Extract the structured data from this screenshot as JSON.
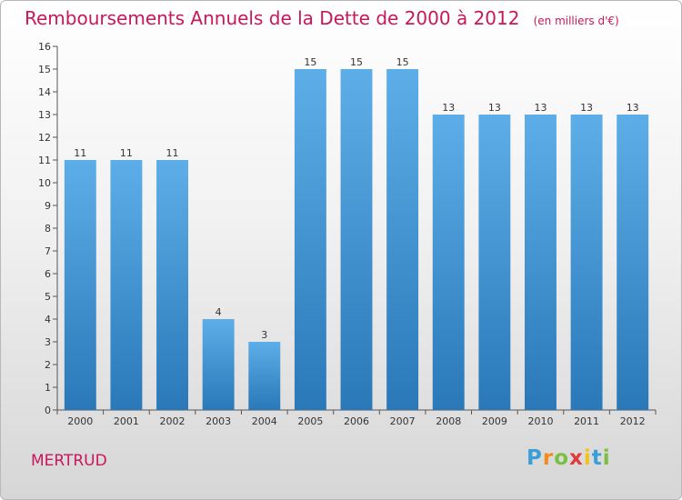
{
  "header": {
    "title": "Remboursements Annuels de la Dette de 2000 à 2012",
    "unit": "(en milliers d'€)"
  },
  "footer": {
    "commune": "MERTRUD",
    "logo_letters": [
      "P",
      "r",
      "o",
      "x",
      "i",
      "t",
      "i"
    ],
    "logo_colors": [
      "#3a9fd8",
      "#f28c1c",
      "#7cbf3f",
      "#e03a3a",
      "#f2c21c",
      "#3a9fd8",
      "#7cbf3f"
    ]
  },
  "colors": {
    "title": "#c8175a",
    "bar_top": "#5daee8",
    "bar_bottom": "#2a78b8",
    "axis": "#555555"
  },
  "chart_data": {
    "type": "bar",
    "categories": [
      "2000",
      "2001",
      "2002",
      "2003",
      "2004",
      "2005",
      "2006",
      "2007",
      "2008",
      "2009",
      "2010",
      "2011",
      "2012"
    ],
    "values": [
      11,
      11,
      11,
      4,
      3,
      15,
      15,
      15,
      13,
      13,
      13,
      13,
      13
    ],
    "data_labels": [
      "11",
      "11",
      "11",
      "4",
      "3",
      "15",
      "15",
      "15",
      "13",
      "13",
      "13",
      "13",
      "13"
    ],
    "y_ticks": [
      "0",
      "1",
      "2",
      "3",
      "4",
      "5",
      "6",
      "7",
      "8",
      "9",
      "10",
      "11",
      "12",
      "13",
      "14",
      "15",
      "16"
    ],
    "ylim": [
      0,
      16
    ],
    "grid": false,
    "legend": "none"
  }
}
